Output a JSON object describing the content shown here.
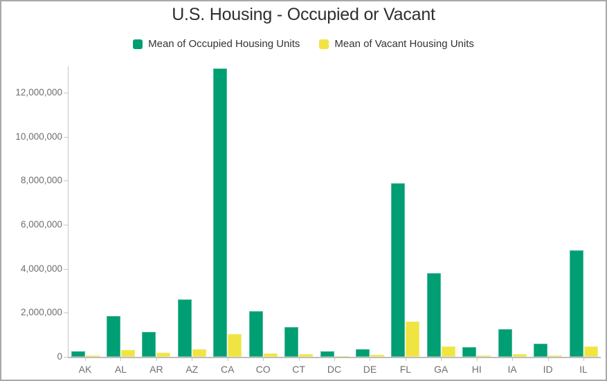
{
  "chart_data": {
    "type": "bar",
    "title": "U.S. Housing - Occupied or Vacant",
    "categories": [
      "AK",
      "AL",
      "AR",
      "AZ",
      "CA",
      "CO",
      "CT",
      "DC",
      "DE",
      "FL",
      "GA",
      "HI",
      "IA",
      "ID",
      "IL"
    ],
    "series": [
      {
        "name": "Mean of Occupied Housing Units",
        "color": "#009E73",
        "values": [
          250000,
          1850000,
          1130000,
          2600000,
          13100000,
          2060000,
          1360000,
          250000,
          340000,
          7900000,
          3800000,
          430000,
          1250000,
          610000,
          4850000
        ]
      },
      {
        "name": "Mean of Vacant Housing Units",
        "color": "#F0E442",
        "values": [
          75000,
          330000,
          175000,
          340000,
          1050000,
          155000,
          115000,
          40000,
          90000,
          1590000,
          470000,
          65000,
          120000,
          70000,
          460000
        ]
      }
    ],
    "xlabel": "",
    "ylabel": "",
    "ylim": [
      0,
      13200000
    ],
    "grid": false,
    "legend_position": "top",
    "y_ticks": [
      {
        "value": 0,
        "label": "0"
      },
      {
        "value": 2000000,
        "label": "2,000,000"
      },
      {
        "value": 4000000,
        "label": "4,000,000"
      },
      {
        "value": 6000000,
        "label": "6,000,000"
      },
      {
        "value": 8000000,
        "label": "8,000,000"
      },
      {
        "value": 10000000,
        "label": "10,000,000"
      },
      {
        "value": 12000000,
        "label": "12,000,000"
      }
    ],
    "colors": {
      "title_text": "#2e2e2e",
      "legend_text": "#323232",
      "axis_text": "#6e6e6e",
      "axis_line": "#c6c6c6",
      "occupied": "#009E73",
      "vacant": "#F0E442"
    }
  }
}
